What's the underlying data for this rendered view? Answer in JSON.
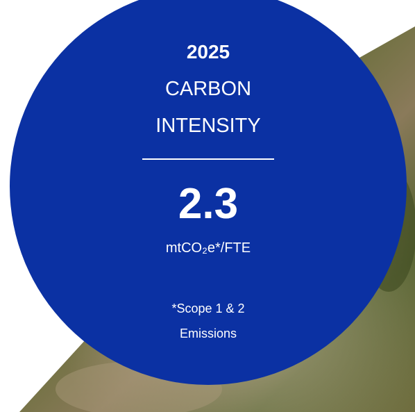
{
  "header": {
    "year": "2025",
    "title_lines": [
      "CARBON",
      "INTENSITY"
    ]
  },
  "metric": {
    "value": 2.3,
    "unit": "mtCO₂e*/FTE"
  },
  "footnote": {
    "lines": [
      "*Scope 1 & 2",
      "Emissions"
    ]
  }
}
